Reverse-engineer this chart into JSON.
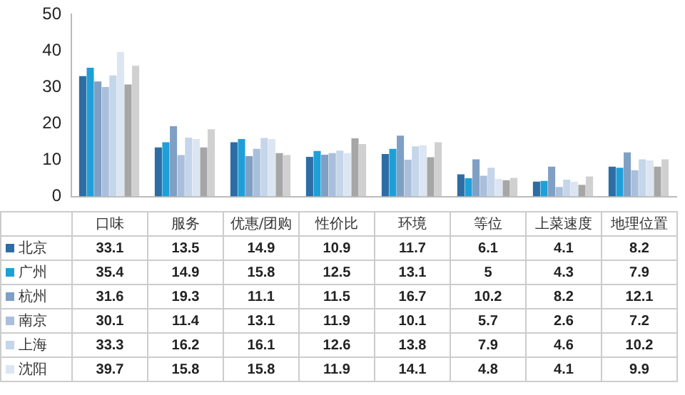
{
  "chart_data": {
    "type": "bar",
    "categories": [
      "口味",
      "服务",
      "优惠/团购",
      "性价比",
      "环境",
      "等位",
      "上菜速度",
      "地理位置"
    ],
    "ylim": [
      0,
      50
    ],
    "yticks": [
      0,
      10,
      20,
      30,
      40,
      50
    ],
    "grid": false,
    "legend": "bottom",
    "series": [
      {
        "name": "北京",
        "color": "#2e6da4",
        "values": [
          33.1,
          13.5,
          14.9,
          10.9,
          11.7,
          6.1,
          4.1,
          8.2
        ],
        "value_labels": [
          "33.1",
          "13.5",
          "14.9",
          "10.9",
          "11.7",
          "6.1",
          "4.1",
          "8.2"
        ]
      },
      {
        "name": "广州",
        "color": "#1f9fd8",
        "values": [
          35.4,
          14.9,
          15.8,
          12.5,
          13.1,
          5,
          4.3,
          7.9
        ],
        "value_labels": [
          "35.4",
          "14.9",
          "15.8",
          "12.5",
          "13.1",
          "5",
          "4.3",
          "7.9"
        ]
      },
      {
        "name": "杭州",
        "color": "#7f9fc4",
        "values": [
          31.6,
          19.3,
          11.1,
          11.5,
          16.7,
          10.2,
          8.2,
          12.1
        ],
        "value_labels": [
          "31.6",
          "19.3",
          "11.1",
          "11.5",
          "16.7",
          "10.2",
          "8.2",
          "12.1"
        ]
      },
      {
        "name": "南京",
        "color": "#a9bfdc",
        "values": [
          30.1,
          11.4,
          13.1,
          11.9,
          10.1,
          5.7,
          2.6,
          7.2
        ],
        "value_labels": [
          "30.1",
          "11.4",
          "13.1",
          "11.9",
          "10.1",
          "5.7",
          "2.6",
          "7.2"
        ]
      },
      {
        "name": "上海",
        "color": "#c5d5ea",
        "values": [
          33.3,
          16.2,
          16.1,
          12.6,
          13.8,
          7.9,
          4.6,
          10.2
        ],
        "value_labels": [
          "33.3",
          "16.2",
          "16.1",
          "12.6",
          "13.8",
          "7.9",
          "4.6",
          "10.2"
        ]
      },
      {
        "name": "沈阳",
        "color": "#dce6f2",
        "values": [
          39.7,
          15.8,
          15.8,
          11.9,
          14.1,
          4.8,
          4.1,
          9.9
        ],
        "value_labels": [
          "39.7",
          "15.8",
          "15.8",
          "11.9",
          "14.1",
          "4.8",
          "4.1",
          "9.9"
        ]
      },
      {
        "color": "#a6a6a6",
        "values": [
          30.8,
          13.5,
          11.9,
          16,
          10.8,
          4.5,
          3.2,
          8.2
        ]
      },
      {
        "color": "#d0d0d0",
        "values": [
          35.9,
          18.5,
          11.4,
          14.4,
          14.9,
          5.1,
          5.5,
          10.2
        ]
      }
    ]
  }
}
